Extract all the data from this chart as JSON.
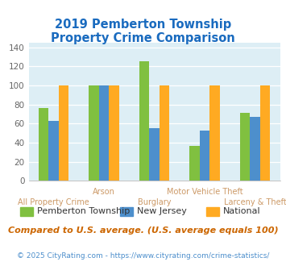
{
  "title": "2019 Pemberton Township\nProperty Crime Comparison",
  "categories": [
    "All Property Crime",
    "Arson",
    "Burglary",
    "Motor Vehicle Theft",
    "Larceny & Theft"
  ],
  "cat_labels_row1": [
    "",
    "Arson",
    "",
    "Motor Vehicle Theft",
    ""
  ],
  "cat_labels_row2": [
    "All Property Crime",
    "",
    "Burglary",
    "",
    "Larceny & Theft"
  ],
  "series": {
    "Pemberton Township": [
      76,
      100,
      125,
      37,
      71
    ],
    "New Jersey": [
      63,
      100,
      55,
      53,
      67
    ],
    "National": [
      100,
      100,
      100,
      100,
      100
    ]
  },
  "colors": {
    "Pemberton Township": "#80c040",
    "New Jersey": "#4d8fcc",
    "National": "#ffaa22"
  },
  "ylim": [
    0,
    145
  ],
  "yticks": [
    0,
    20,
    40,
    60,
    80,
    100,
    120,
    140
  ],
  "title_color": "#1a6bbf",
  "footnote": "Compared to U.S. average. (U.S. average equals 100)",
  "copyright": "© 2025 CityRating.com - https://www.cityrating.com/crime-statistics/",
  "footnote_color": "#cc6600",
  "copyright_color": "#4d8fcc",
  "legend_text_color": "#333333",
  "xlabel_color": "#cc9966",
  "ylabel_color": "#888888",
  "title_fontsize": 10.5,
  "legend_fontsize": 8.0,
  "footnote_fontsize": 8.0,
  "copyright_fontsize": 6.5,
  "bar_width": 0.2
}
